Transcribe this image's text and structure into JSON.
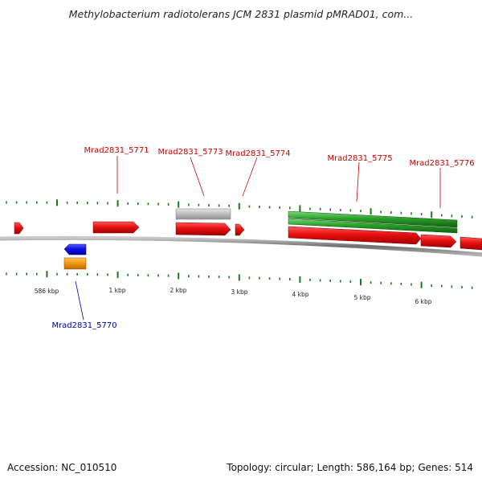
{
  "header": {
    "title": "Methylobacterium radiotolerans JCM 2831 plasmid pMRAD01, com..."
  },
  "footer": {
    "accession": "Accession: NC_010510",
    "summary": "Topology: circular; Length: 586,164 bp; Genes: 514"
  },
  "colors": {
    "forward_gene": "#e01010",
    "reverse_gene": "#1010e0",
    "other_gene": "#f0900a",
    "pseudo_gene": "#b8b8b8",
    "rna_feature": "#2aa12a",
    "tick": "#1a7a1a",
    "backbone": "#8a8a8a",
    "label_forward": "#cc0000",
    "label_reverse": "#0000aa"
  },
  "scale_labels": [
    "586 kbp",
    "1 kbp",
    "2 kbp",
    "3 kbp",
    "4 kbp",
    "5 kbp",
    "6 kbp"
  ],
  "gene_labels": [
    {
      "text": "Mrad2831_5771",
      "strand": "forward"
    },
    {
      "text": "Mrad2831_5773",
      "strand": "forward"
    },
    {
      "text": "Mrad2831_5774",
      "strand": "forward"
    },
    {
      "text": "Mrad2831_5775",
      "strand": "forward"
    },
    {
      "text": "Mrad2831_5776",
      "strand": "forward"
    },
    {
      "text": "Mrad2831_5770",
      "strand": "reverse"
    }
  ]
}
